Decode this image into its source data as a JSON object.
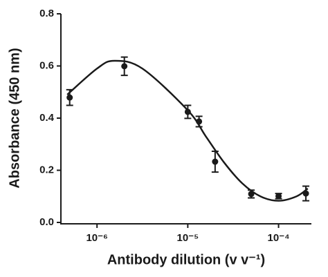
{
  "chart_data": {
    "type": "scatter",
    "xlabel": "Antibody dilution (v v⁻¹)",
    "ylabel": "Absorbance (450 nm)",
    "xscale": "log",
    "xlim": [
      4e-07,
      0.00023
    ],
    "xticks": [
      {
        "value": 1e-06,
        "label": "10⁻⁶"
      },
      {
        "value": 1e-05,
        "label": "10⁻⁵"
      },
      {
        "value": 0.0001,
        "label": "10⁻⁴"
      }
    ],
    "ylim": [
      0,
      0.8
    ],
    "yticks": [
      {
        "value": 0,
        "label": "0.0"
      },
      0.2,
      0.4,
      0.6,
      0.8
    ],
    "x": [
      5e-07,
      2e-06,
      1e-05,
      1.33e-05,
      2e-05,
      5e-05,
      0.0001,
      0.0002
    ],
    "values": [
      0.479,
      0.599,
      0.424,
      0.387,
      0.233,
      0.109,
      0.101,
      0.111
    ],
    "errors": [
      0.03,
      0.035,
      0.025,
      0.02,
      0.04,
      0.015,
      0.01,
      0.028
    ],
    "color": "#1a1a1a",
    "fit": {
      "x": [
        4.7e-07,
        1e-06,
        1.55e-06,
        3.16e-06,
        1e-05,
        1.58e-05,
        2.51e-05,
        3.98e-05,
        6.31e-05,
        0.0001,
        0.000158,
        0.00021
      ],
      "values": [
        0.49,
        0.59,
        0.62,
        0.59,
        0.43,
        0.33,
        0.23,
        0.15,
        0.1,
        0.083,
        0.1,
        0.13
      ],
      "color": "#1a1a1a"
    }
  }
}
